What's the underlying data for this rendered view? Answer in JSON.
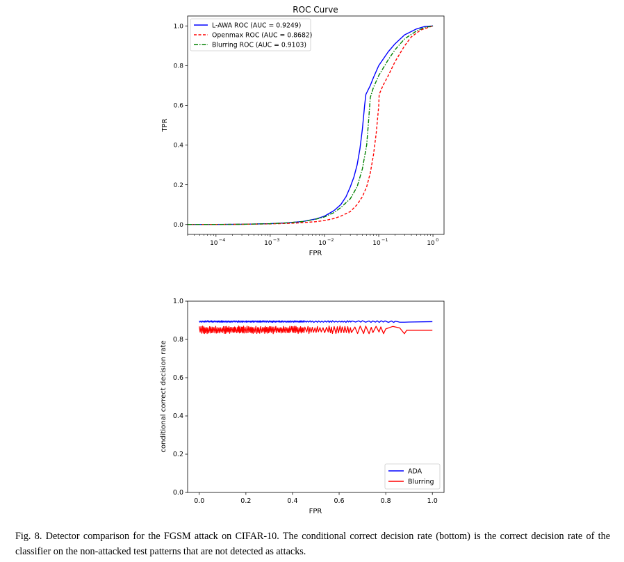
{
  "caption": "Fig. 8.  Detector comparison for the FGSM attack on CIFAR-10. The conditional correct decision rate (bottom) is the correct decision rate of the classifier on the non-attacked test patterns that are not detected as attacks.",
  "colors": {
    "blue": "#0000ff",
    "red": "#ff0000",
    "green": "#008000"
  },
  "chart_data": [
    {
      "type": "line",
      "title": "ROC Curve",
      "xlabel": "FPR",
      "ylabel": "TPR",
      "xscale": "log",
      "xlim": [
        3e-05,
        1.6
      ],
      "ylim": [
        -0.05,
        1.05
      ],
      "xtick_values": [
        0.0001,
        0.001,
        0.01,
        0.1,
        1
      ],
      "xtick_base": "10",
      "xtick_exponents": [
        "−4",
        "−3",
        "−2",
        "−1",
        "0"
      ],
      "yticks": [
        0.0,
        0.2,
        0.4,
        0.6,
        0.8,
        1.0
      ],
      "ytick_labels": [
        "0.0",
        "0.2",
        "0.4",
        "0.6",
        "0.8",
        "1.0"
      ],
      "legend_position": "top-left",
      "series": [
        {
          "name": "L-AWA ROC (AUC = 0.9249)",
          "color": "#0000ff",
          "style": "solid",
          "points": [
            [
              3e-05,
              0
            ],
            [
              0.0001,
              0
            ],
            [
              0.0003,
              0.001
            ],
            [
              0.001,
              0.004
            ],
            [
              0.002,
              0.008
            ],
            [
              0.004,
              0.015
            ],
            [
              0.007,
              0.028
            ],
            [
              0.01,
              0.042
            ],
            [
              0.015,
              0.07
            ],
            [
              0.02,
              0.1
            ],
            [
              0.025,
              0.14
            ],
            [
              0.03,
              0.19
            ],
            [
              0.035,
              0.24
            ],
            [
              0.04,
              0.3
            ],
            [
              0.045,
              0.38
            ],
            [
              0.05,
              0.48
            ],
            [
              0.055,
              0.6
            ],
            [
              0.058,
              0.655
            ],
            [
              0.07,
              0.7
            ],
            [
              0.08,
              0.74
            ],
            [
              0.1,
              0.8
            ],
            [
              0.15,
              0.87
            ],
            [
              0.2,
              0.91
            ],
            [
              0.3,
              0.955
            ],
            [
              0.5,
              0.985
            ],
            [
              0.7,
              0.997
            ],
            [
              1.0,
              1.0
            ]
          ]
        },
        {
          "name": "Openmax ROC (AUC = 0.8682)",
          "color": "#ff0000",
          "style": "dashed",
          "points": [
            [
              3e-05,
              0
            ],
            [
              0.0001,
              0
            ],
            [
              0.0003,
              0.001
            ],
            [
              0.001,
              0.003
            ],
            [
              0.003,
              0.007
            ],
            [
              0.007,
              0.014
            ],
            [
              0.01,
              0.02
            ],
            [
              0.015,
              0.03
            ],
            [
              0.02,
              0.042
            ],
            [
              0.03,
              0.065
            ],
            [
              0.04,
              0.1
            ],
            [
              0.05,
              0.14
            ],
            [
              0.06,
              0.19
            ],
            [
              0.07,
              0.26
            ],
            [
              0.08,
              0.35
            ],
            [
              0.09,
              0.46
            ],
            [
              0.095,
              0.53
            ],
            [
              0.1,
              0.595
            ],
            [
              0.102,
              0.655
            ],
            [
              0.12,
              0.7
            ],
            [
              0.15,
              0.75
            ],
            [
              0.2,
              0.82
            ],
            [
              0.3,
              0.9
            ],
            [
              0.4,
              0.945
            ],
            [
              0.6,
              0.98
            ],
            [
              1.0,
              1.0
            ]
          ]
        },
        {
          "name": "Blurring ROC (AUC = 0.9103)",
          "color": "#008000",
          "style": "dashdot",
          "points": [
            [
              3e-05,
              0
            ],
            [
              0.0001,
              0
            ],
            [
              0.0003,
              0.001
            ],
            [
              0.001,
              0.004
            ],
            [
              0.002,
              0.008
            ],
            [
              0.004,
              0.015
            ],
            [
              0.007,
              0.027
            ],
            [
              0.01,
              0.038
            ],
            [
              0.015,
              0.06
            ],
            [
              0.02,
              0.085
            ],
            [
              0.03,
              0.13
            ],
            [
              0.04,
              0.19
            ],
            [
              0.05,
              0.28
            ],
            [
              0.06,
              0.4
            ],
            [
              0.065,
              0.52
            ],
            [
              0.07,
              0.64
            ],
            [
              0.08,
              0.69
            ],
            [
              0.1,
              0.75
            ],
            [
              0.15,
              0.83
            ],
            [
              0.2,
              0.88
            ],
            [
              0.3,
              0.935
            ],
            [
              0.5,
              0.975
            ],
            [
              0.7,
              0.992
            ],
            [
              1.0,
              1.0
            ]
          ]
        }
      ]
    },
    {
      "type": "line",
      "title": "",
      "xlabel": "FPR",
      "ylabel": "conditional correct decision rate",
      "xlim": [
        -0.05,
        1.05
      ],
      "ylim": [
        0.0,
        1.0
      ],
      "xticks": [
        0.0,
        0.2,
        0.4,
        0.6,
        0.8,
        1.0
      ],
      "xtick_labels": [
        "0.0",
        "0.2",
        "0.4",
        "0.6",
        "0.8",
        "1.0"
      ],
      "yticks": [
        0.0,
        0.2,
        0.4,
        0.6,
        0.8,
        1.0
      ],
      "ytick_labels": [
        "0.0",
        "0.2",
        "0.4",
        "0.6",
        "0.8",
        "1.0"
      ],
      "legend_position": "bottom-right",
      "series": [
        {
          "name": "ADA",
          "color": "#0000ff",
          "noisy_range": [
            0.0,
            0.84
          ],
          "band": [
            0.889,
            0.898
          ],
          "tail": [
            [
              0.84,
              0.895
            ],
            [
              0.85,
              0.893
            ],
            [
              0.86,
              0.89
            ],
            [
              0.88,
              0.89
            ],
            [
              0.9,
              0.891
            ],
            [
              1.0,
              0.893
            ]
          ]
        },
        {
          "name": "Blurring",
          "color": "#ff0000",
          "noisy_range": [
            0.0,
            0.8
          ],
          "band": [
            0.83,
            0.87
          ],
          "tail": [
            [
              0.8,
              0.855
            ],
            [
              0.83,
              0.868
            ],
            [
              0.86,
              0.86
            ],
            [
              0.88,
              0.83
            ],
            [
              0.89,
              0.848
            ],
            [
              1.0,
              0.848
            ]
          ]
        }
      ]
    }
  ]
}
